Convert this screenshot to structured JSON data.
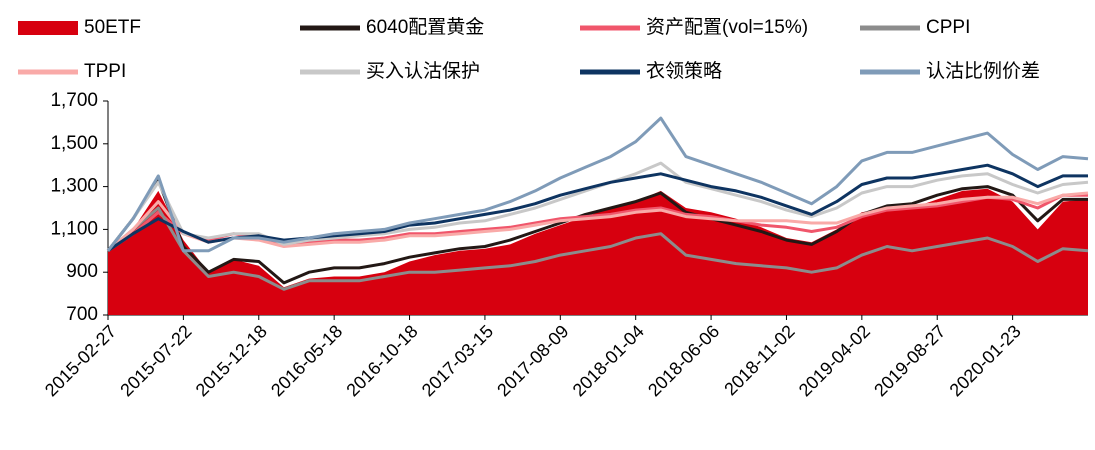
{
  "chart_data": {
    "type": "line",
    "categories": [
      "2015-02-27",
      null,
      null,
      "2015-07-22",
      null,
      null,
      "2015-12-18",
      null,
      null,
      "2016-05-18",
      null,
      null,
      "2016-10-18",
      null,
      null,
      "2017-03-15",
      null,
      null,
      "2017-08-09",
      null,
      null,
      "2018-01-04",
      null,
      null,
      "2018-06-06",
      null,
      null,
      "2018-11-02",
      null,
      null,
      "2019-04-02",
      null,
      null,
      "2019-08-27",
      null,
      null,
      "2020-01-23",
      null,
      null,
      null
    ],
    "ylim": [
      700,
      1700
    ],
    "yticks": [
      700,
      900,
      {
        "value": 1100,
        "label": "1,100"
      },
      {
        "value": 1300,
        "label": "1,300"
      },
      {
        "value": 1500,
        "label": "1,500"
      },
      {
        "value": 1700,
        "label": "1,700"
      }
    ],
    "series": [
      {
        "name": "50ETF",
        "type": "area",
        "color": "#d7000f",
        "values": [
          1000,
          1100,
          1280,
          1050,
          900,
          960,
          930,
          830,
          870,
          880,
          880,
          900,
          950,
          980,
          1000,
          1010,
          1030,
          1080,
          1120,
          1160,
          1200,
          1230,
          1280,
          1200,
          1180,
          1150,
          1110,
          1060,
          1040,
          1100,
          1180,
          1200,
          1200,
          1240,
          1280,
          1290,
          1230,
          1100,
          1230,
          1240
        ]
      },
      {
        "name": "6040配置黄金",
        "color": "#231815",
        "values": [
          1000,
          1150,
          1330,
          1020,
          900,
          960,
          950,
          850,
          900,
          920,
          920,
          940,
          970,
          990,
          1010,
          1020,
          1050,
          1090,
          1130,
          1170,
          1200,
          1230,
          1270,
          1180,
          1150,
          1120,
          1090,
          1050,
          1030,
          1090,
          1170,
          1210,
          1220,
          1260,
          1290,
          1300,
          1260,
          1140,
          1240,
          1240
        ]
      },
      {
        "name": "资产配置(vol=15%)",
        "color": "#f0566b",
        "values": [
          1000,
          1080,
          1180,
          1080,
          1050,
          1080,
          1060,
          1030,
          1040,
          1050,
          1050,
          1060,
          1080,
          1080,
          1090,
          1100,
          1110,
          1130,
          1150,
          1160,
          1170,
          1190,
          1200,
          1170,
          1160,
          1140,
          1120,
          1110,
          1090,
          1110,
          1160,
          1190,
          1200,
          1210,
          1230,
          1250,
          1240,
          1200,
          1260,
          1260
        ]
      },
      {
        "name": "CPPI",
        "color": "#8c8c8c",
        "values": [
          1000,
          1100,
          1200,
          1000,
          880,
          900,
          880,
          820,
          860,
          860,
          860,
          880,
          900,
          900,
          910,
          920,
          930,
          950,
          980,
          1000,
          1020,
          1060,
          1080,
          980,
          960,
          940,
          930,
          920,
          900,
          920,
          980,
          1020,
          1000,
          1020,
          1040,
          1060,
          1020,
          950,
          1010,
          1000
        ]
      },
      {
        "name": "TPPI",
        "color": "#f9aaa8",
        "values": [
          1000,
          1100,
          1230,
          1080,
          1040,
          1060,
          1050,
          1020,
          1030,
          1040,
          1040,
          1050,
          1070,
          1070,
          1080,
          1090,
          1100,
          1120,
          1140,
          1150,
          1160,
          1180,
          1190,
          1160,
          1150,
          1140,
          1140,
          1140,
          1130,
          1130,
          1170,
          1200,
          1210,
          1220,
          1240,
          1250,
          1250,
          1220,
          1260,
          1270
        ]
      },
      {
        "name": "买入认沽保护",
        "color": "#c8c8c8",
        "values": [
          1000,
          1150,
          1320,
          1080,
          1060,
          1080,
          1080,
          1030,
          1050,
          1060,
          1070,
          1080,
          1100,
          1110,
          1130,
          1140,
          1170,
          1200,
          1240,
          1280,
          1320,
          1360,
          1410,
          1320,
          1290,
          1260,
          1230,
          1190,
          1160,
          1200,
          1270,
          1300,
          1300,
          1330,
          1350,
          1360,
          1310,
          1270,
          1310,
          1320
        ]
      },
      {
        "name": "衣领策略",
        "color": "#0e3461",
        "values": [
          1000,
          1080,
          1150,
          1090,
          1040,
          1060,
          1070,
          1050,
          1060,
          1070,
          1080,
          1090,
          1120,
          1130,
          1150,
          1170,
          1190,
          1220,
          1260,
          1290,
          1320,
          1340,
          1360,
          1330,
          1300,
          1280,
          1250,
          1210,
          1170,
          1230,
          1310,
          1340,
          1340,
          1360,
          1380,
          1400,
          1360,
          1300,
          1350,
          1350
        ]
      },
      {
        "name": "认沽比例价差",
        "color": "#7f9bb8",
        "values": [
          1000,
          1150,
          1350,
          1000,
          1000,
          1060,
          1060,
          1040,
          1060,
          1080,
          1090,
          1100,
          1130,
          1150,
          1170,
          1190,
          1230,
          1280,
          1340,
          1390,
          1440,
          1510,
          1620,
          1440,
          1400,
          1360,
          1320,
          1270,
          1220,
          1300,
          1420,
          1460,
          1460,
          1490,
          1520,
          1550,
          1450,
          1380,
          1440,
          1430
        ]
      }
    ]
  }
}
